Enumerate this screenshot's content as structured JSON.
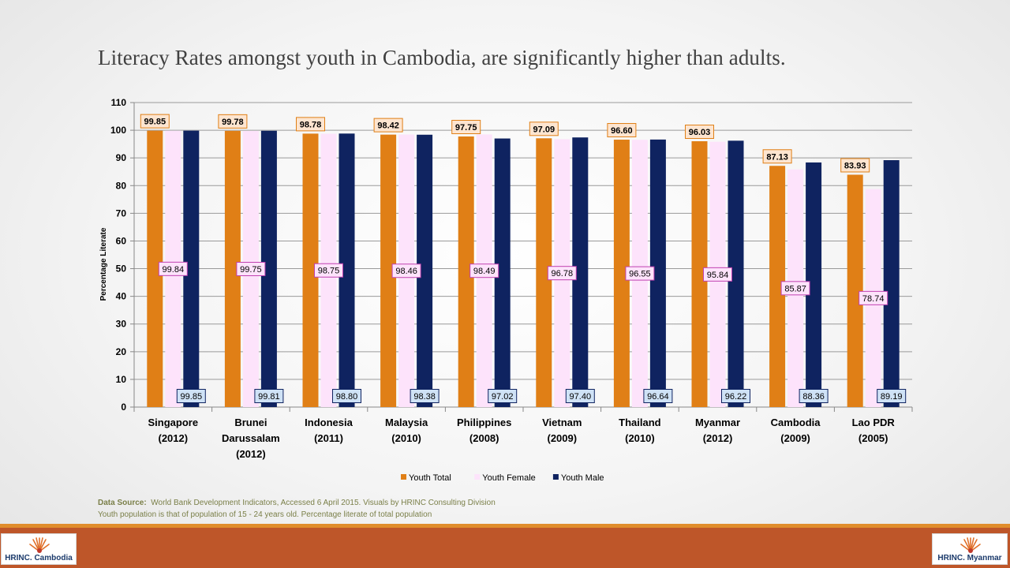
{
  "title": "Literacy Rates amongst youth in Cambodia, are significantly higher than adults.",
  "chart_data": {
    "type": "bar",
    "title": "Literacy Rates amongst youth in Cambodia, are significantly higher than adults.",
    "xlabel": "",
    "ylabel": "Percentage Literate",
    "ylim": [
      0,
      110
    ],
    "yticks": [
      0,
      10,
      20,
      30,
      40,
      50,
      60,
      70,
      80,
      90,
      100,
      110
    ],
    "grid": true,
    "legend_position": "bottom",
    "categories": [
      [
        "Singapore",
        "(2012)"
      ],
      [
        "Brunei",
        "Darussalam",
        "(2012)"
      ],
      [
        "Indonesia",
        "(2011)"
      ],
      [
        "Malaysia",
        "(2010)"
      ],
      [
        "Philippines",
        "(2008)"
      ],
      [
        "Vietnam",
        "(2009)"
      ],
      [
        "Thailand",
        "(2010)"
      ],
      [
        "Myanmar",
        "(2012)"
      ],
      [
        "Cambodia",
        "(2009)"
      ],
      [
        "Lao PDR",
        "(2005)"
      ]
    ],
    "series": [
      {
        "name": "Youth Total",
        "color": "#e07f16",
        "values": [
          99.85,
          99.78,
          98.78,
          98.42,
          97.75,
          97.09,
          96.6,
          96.03,
          87.13,
          83.93
        ],
        "labels": [
          "99.85",
          "99.78",
          "98.78",
          "98.42",
          "97.75",
          "97.09",
          "96.60",
          "96.03",
          "87.13",
          "83.93"
        ]
      },
      {
        "name": "Youth Female",
        "color": "#fde3fb",
        "values": [
          99.84,
          99.75,
          98.75,
          98.46,
          98.49,
          96.78,
          96.55,
          95.84,
          85.87,
          78.74
        ],
        "labels": [
          "99.84",
          "99.75",
          "98.75",
          "98.46",
          "98.49",
          "96.78",
          "96.55",
          "95.84",
          "85.87",
          "78.74"
        ]
      },
      {
        "name": "Youth Male",
        "color": "#0f2360",
        "values": [
          99.85,
          99.81,
          98.8,
          98.38,
          97.02,
          97.4,
          96.64,
          96.22,
          88.36,
          89.19
        ],
        "labels": [
          "99.85",
          "99.81",
          "98.80",
          "98.38",
          "97.02",
          "97.40",
          "96.64",
          "96.22",
          "88.36",
          "89.19"
        ]
      }
    ]
  },
  "source": {
    "label": "Data Source:",
    "text": "World Bank Development Indicators, Accessed 6 April 2015. Visuals by HRINC Consulting Division",
    "note": "Youth population is that of population of 15 - 24 years old.  Percentage literate of total population"
  },
  "logos": {
    "left": {
      "brand": "HRINC.",
      "location": "Cambodia"
    },
    "right": {
      "brand": "HRINC.",
      "location": "Myanmar"
    }
  },
  "colors": {
    "band": "#be5629",
    "band_top": "#e08d2c",
    "youth_total": "#e07f16",
    "youth_female": "#fde3fb",
    "youth_male": "#0f2360"
  }
}
